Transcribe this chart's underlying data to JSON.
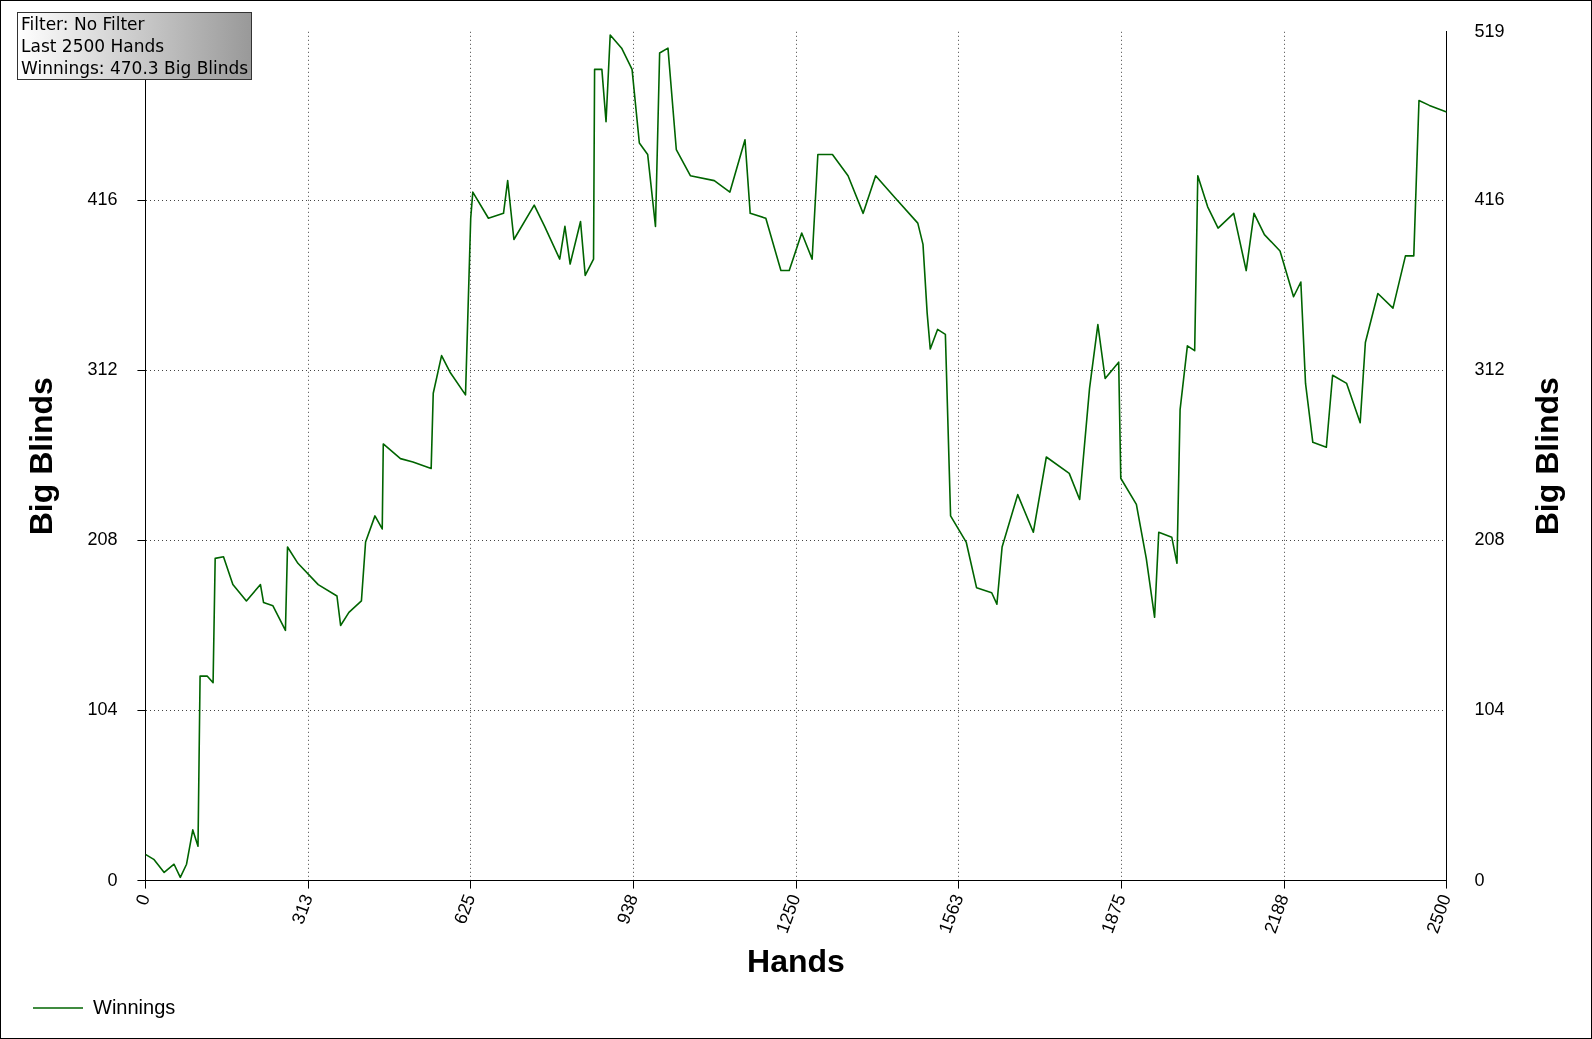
{
  "chart_data": {
    "type": "line",
    "xlabel": "Hands",
    "ylabel": "Big Blinds",
    "y2label": "Big Blinds",
    "annotations": [
      "Filter: No Filter",
      "Last  2500 Hands",
      "Winnings: 470.3 Big Blinds"
    ],
    "series": [
      {
        "name": "Winnings",
        "color": "#006400",
        "x": [
          0,
          16,
          36,
          55,
          67,
          79,
          91,
          101,
          105,
          119,
          130,
          134,
          150,
          168,
          194,
          221,
          227,
          245,
          269,
          273,
          293,
          332,
          368,
          375,
          391,
          415,
          423,
          441,
          455,
          457,
          490,
          514,
          549,
          553,
          569,
          585,
          615,
          625,
          629,
          659,
          688,
          696,
          708,
          747,
          767,
          796,
          806,
          816,
          836,
          845,
          861,
          863,
          877,
          885,
          893,
          915,
          935,
          949,
          965,
          980,
          988,
          1004,
          1020,
          1047,
          1093,
          1123,
          1152,
          1162,
          1192,
          1221,
          1237,
          1261,
          1281,
          1292,
          1320,
          1350,
          1379,
          1403,
          1439,
          1484,
          1494,
          1502,
          1508,
          1522,
          1537,
          1547,
          1577,
          1597,
          1626,
          1636,
          1646,
          1676,
          1706,
          1731,
          1775,
          1795,
          1814,
          1830,
          1844,
          1870,
          1874,
          1904,
          1923,
          1939,
          1947,
          1972,
          1982,
          1988,
          2002,
          2016,
          2022,
          2041,
          2061,
          2091,
          2115,
          2130,
          2150,
          2180,
          2206,
          2220,
          2229,
          2243,
          2269,
          2281,
          2308,
          2334,
          2344,
          2368,
          2397,
          2421,
          2437,
          2447,
          2467,
          2500
        ],
        "values": [
          16,
          13,
          5,
          10,
          2,
          10,
          31,
          21,
          125,
          125,
          121,
          197,
          198,
          181,
          171,
          181,
          170,
          168,
          153,
          204,
          194,
          181,
          174,
          156,
          164,
          171,
          207,
          223,
          215,
          267,
          258,
          256,
          252,
          298,
          321,
          311,
          297,
          405,
          421,
          405,
          408,
          428,
          392,
          413,
          400,
          380,
          400,
          377,
          403,
          370,
          380,
          496,
          496,
          464,
          517,
          509,
          496,
          451,
          444,
          400,
          506,
          509,
          447,
          431,
          428,
          421,
          453,
          408,
          405,
          373,
          373,
          396,
          380,
          444,
          444,
          431,
          408,
          431,
          418,
          402,
          389,
          347,
          325,
          337,
          334,
          223,
          207,
          179,
          176,
          169,
          204,
          236,
          213,
          259,
          249,
          233,
          301,
          340,
          307,
          317,
          246,
          230,
          197,
          161,
          213,
          210,
          194,
          288,
          327,
          324,
          431,
          412,
          399,
          408,
          373,
          408,
          395,
          385,
          357,
          366,
          304,
          268,
          265,
          309,
          304,
          280,
          329,
          359,
          350,
          382,
          382,
          477,
          474,
          470
        ]
      }
    ],
    "xlim": [
      0,
      2500
    ],
    "xticks": [
      0,
      313,
      625,
      938,
      1250,
      1563,
      1875,
      2188,
      2500
    ],
    "ylim": [
      0,
      519
    ],
    "yticks": [
      0,
      104,
      208,
      312,
      416
    ],
    "y2lim": [
      0,
      519
    ],
    "y2ticks": [
      0,
      104,
      208,
      312,
      416,
      519
    ],
    "grid": true,
    "legend": "bottom left",
    "marker": "none",
    "line_style": "solid"
  }
}
